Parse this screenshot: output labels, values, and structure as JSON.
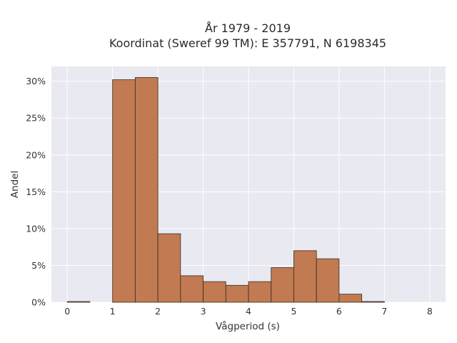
{
  "title_line1": "År 1979 - 2019",
  "title_line2": "Koordinat (Sweref 99 TM): E 357791, N 6198345",
  "chart_data": {
    "type": "bar",
    "title": "År 1979 - 2019",
    "subtitle": "Koordinat (Sweref 99 TM): E 357791, N 6198345",
    "xlabel": "Vågperiod (s)",
    "ylabel": "Andel",
    "bin_width": 0.5,
    "bins": [
      {
        "x0": 0.0,
        "x1": 0.5,
        "value": 0.1
      },
      {
        "x0": 0.5,
        "x1": 1.0,
        "value": 0.0
      },
      {
        "x0": 1.0,
        "x1": 1.5,
        "value": 30.2
      },
      {
        "x0": 1.5,
        "x1": 2.0,
        "value": 30.5
      },
      {
        "x0": 2.0,
        "x1": 2.5,
        "value": 9.3
      },
      {
        "x0": 2.5,
        "x1": 3.0,
        "value": 3.6
      },
      {
        "x0": 3.0,
        "x1": 3.5,
        "value": 2.8
      },
      {
        "x0": 3.5,
        "x1": 4.0,
        "value": 2.3
      },
      {
        "x0": 4.0,
        "x1": 4.5,
        "value": 2.8
      },
      {
        "x0": 4.5,
        "x1": 5.0,
        "value": 4.7
      },
      {
        "x0": 5.0,
        "x1": 5.5,
        "value": 7.0
      },
      {
        "x0": 5.5,
        "x1": 6.0,
        "value": 5.9
      },
      {
        "x0": 6.0,
        "x1": 6.5,
        "value": 1.1
      },
      {
        "x0": 6.5,
        "x1": 7.0,
        "value": 0.1
      }
    ],
    "xticks": [
      0,
      1,
      2,
      3,
      4,
      5,
      6,
      7,
      8
    ],
    "yticks": [
      "0%",
      "5%",
      "10%",
      "15%",
      "20%",
      "25%",
      "30%"
    ],
    "ytick_values": [
      0,
      5,
      10,
      15,
      20,
      25,
      30
    ],
    "xlim": [
      -0.35,
      8.35
    ],
    "ylim": [
      0,
      32
    ],
    "grid": true,
    "colors": {
      "bar_fill": "#c17a52",
      "bar_edge": "#3a2a20",
      "plot_bg": "#e9e9f1",
      "grid": "#ffffff"
    }
  }
}
